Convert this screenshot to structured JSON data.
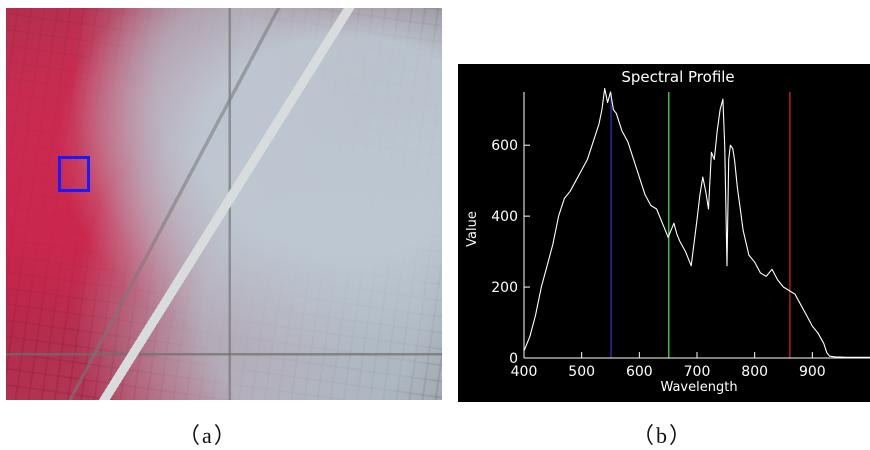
{
  "captions": {
    "a": "（a）",
    "b": "（b）"
  },
  "chart_data": {
    "type": "line",
    "title": "Spectral Profile",
    "xlabel": "Wavelength",
    "ylabel": "Value",
    "xlim": [
      400,
      1000
    ],
    "ylim": [
      0,
      750
    ],
    "xticks": [
      400,
      500,
      600,
      700,
      800,
      900
    ],
    "yticks": [
      0,
      200,
      400,
      600
    ],
    "grid": false,
    "background": "#000000",
    "line_color": "#ffffff",
    "vertical_markers": [
      {
        "x": 551,
        "color": "#2a2aa0"
      },
      {
        "x": 651,
        "color": "#3ec03e"
      },
      {
        "x": 861,
        "color": "#b02020"
      }
    ],
    "series": [
      {
        "x": [
          400,
          410,
          420,
          430,
          440,
          450,
          460,
          470,
          480,
          490,
          500,
          510,
          520,
          530,
          535,
          540,
          545,
          550,
          555,
          560,
          570,
          580,
          590,
          600,
          610,
          620,
          630,
          640,
          650,
          655,
          660,
          665,
          670,
          680,
          690,
          700,
          705,
          710,
          715,
          720,
          725,
          730,
          735,
          740,
          745,
          748,
          752,
          755,
          758,
          762,
          765,
          770,
          775,
          780,
          790,
          800,
          810,
          820,
          830,
          840,
          850,
          860,
          870,
          880,
          890,
          900,
          910,
          920,
          925,
          930,
          940,
          960,
          980,
          1000
        ],
        "y": [
          20,
          60,
          120,
          200,
          260,
          320,
          400,
          450,
          470,
          500,
          530,
          560,
          610,
          660,
          700,
          760,
          720,
          750,
          700,
          690,
          640,
          610,
          560,
          510,
          460,
          430,
          420,
          380,
          340,
          360,
          380,
          350,
          330,
          300,
          260,
          390,
          460,
          510,
          470,
          420,
          580,
          560,
          640,
          700,
          730,
          600,
          260,
          560,
          600,
          590,
          560,
          480,
          420,
          360,
          290,
          270,
          240,
          230,
          250,
          220,
          200,
          190,
          180,
          150,
          120,
          90,
          70,
          40,
          15,
          5,
          3,
          2,
          2,
          2
        ]
      }
    ]
  }
}
